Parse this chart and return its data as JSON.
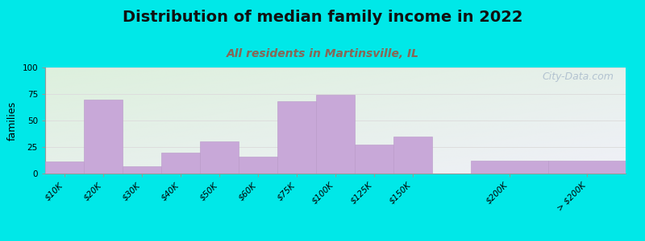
{
  "title": "Distribution of median family income in 2022",
  "subtitle": "All residents in Martinsville, IL",
  "categories": [
    "$10K",
    "$20K",
    "$30K",
    "$40K",
    "$50K",
    "$60K",
    "$75K",
    "$100K",
    "$125K",
    "$150K",
    "$200K",
    "> $200K"
  ],
  "values": [
    11,
    70,
    7,
    20,
    30,
    16,
    68,
    74,
    27,
    35,
    12,
    12
  ],
  "bar_color": "#c8a8d8",
  "bar_edge_color": "#b898c8",
  "bg_outer": "#00e8e8",
  "plot_bg_top_left": "#ddf0dd",
  "plot_bg_bottom_right": "#f0f0f8",
  "ylabel": "families",
  "ylim": [
    0,
    100
  ],
  "yticks": [
    0,
    25,
    50,
    75,
    100
  ],
  "title_fontsize": 14,
  "subtitle_fontsize": 10,
  "ylabel_fontsize": 9,
  "tick_fontsize": 7.5,
  "watermark_text": "City-Data.com",
  "watermark_color": "#aabbcc",
  "subtitle_color": "#886655",
  "grid_color": "#dddddd",
  "bar_positions": [
    0,
    1,
    2,
    3,
    4,
    5,
    6,
    7,
    8,
    9,
    11,
    13
  ],
  "bar_widths": [
    1,
    1,
    1,
    1,
    1,
    1,
    1,
    1,
    1,
    1,
    2,
    2
  ]
}
